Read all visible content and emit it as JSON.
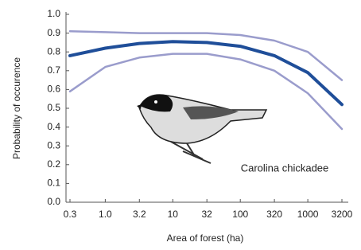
{
  "chart_data": {
    "type": "line",
    "x_label": "Area of forest (ha)",
    "y_label": "Probability of occurence",
    "annotation": "Carolina chickadee",
    "xscale": "log",
    "x": [
      0.3,
      1,
      3.2,
      10,
      32,
      100,
      320,
      1000,
      3200
    ],
    "series": [
      {
        "color": "#9a9ccc",
        "values": [
          0.91,
          0.905,
          0.9,
          0.9,
          0.9,
          0.89,
          0.86,
          0.8,
          0.65
        ]
      },
      {
        "color": "#1f4e99",
        "values": [
          0.78,
          0.82,
          0.845,
          0.855,
          0.85,
          0.83,
          0.78,
          0.69,
          0.52
        ]
      },
      {
        "color": "#9a9ccc",
        "values": [
          0.59,
          0.72,
          0.77,
          0.79,
          0.79,
          0.76,
          0.7,
          0.58,
          0.39
        ]
      }
    ],
    "xlim": [
      0.3,
      3200
    ],
    "xticks": [
      0.3,
      {
        "value": 1,
        "label": "1.0"
      },
      3.2,
      10,
      32,
      100,
      320,
      1000,
      3200
    ],
    "ylim": [
      0,
      1
    ],
    "yticks": [
      {
        "value": 0,
        "label": "0.0"
      },
      0.1,
      0.2,
      0.3,
      0.4,
      0.5,
      0.6,
      0.7,
      0.8,
      0.9,
      {
        "value": 1,
        "label": "1.0"
      }
    ],
    "grid": false
  }
}
